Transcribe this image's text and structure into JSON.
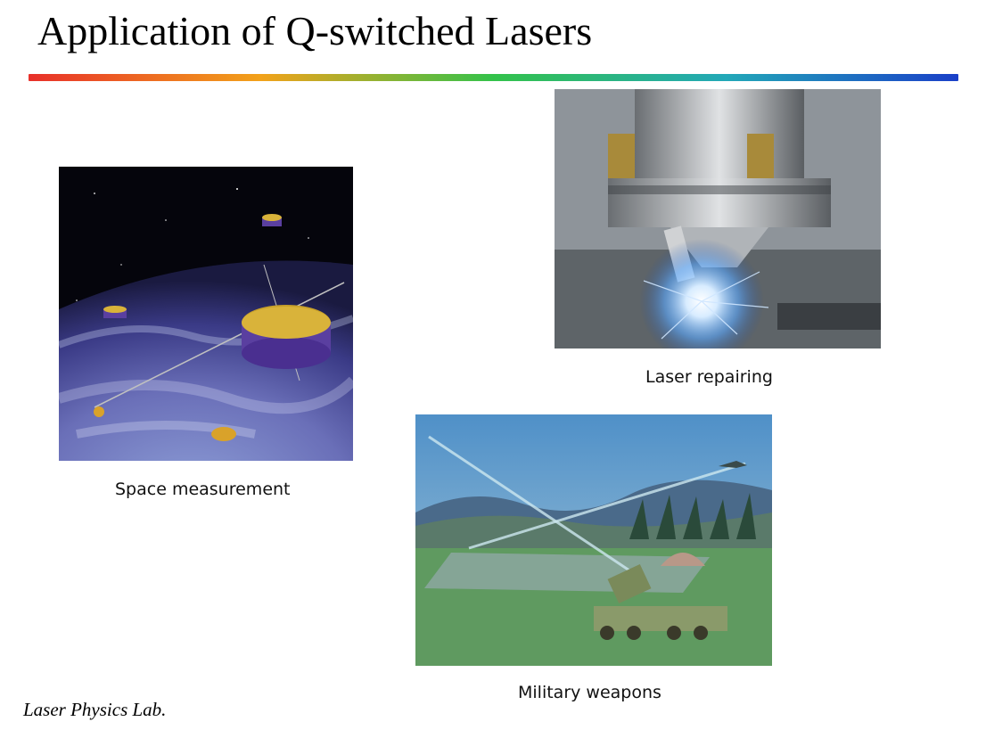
{
  "slide": {
    "title": "Application of Q-switched Lasers",
    "footer": "Laser Physics Lab.",
    "colors": {
      "rule_start": "#e8302a",
      "rule_mid1": "#f2a21a",
      "rule_mid2": "#33c24a",
      "rule_mid3": "#22a8b8",
      "rule_end": "#1a3fc8"
    },
    "images": [
      {
        "id": "space",
        "caption": "Space measurement",
        "icon": "satellite-image"
      },
      {
        "id": "repair",
        "caption": "Laser repairing",
        "icon": "welding-nozzle-image"
      },
      {
        "id": "military",
        "caption": "Military weapons",
        "icon": "laser-battlefield-image"
      }
    ]
  }
}
